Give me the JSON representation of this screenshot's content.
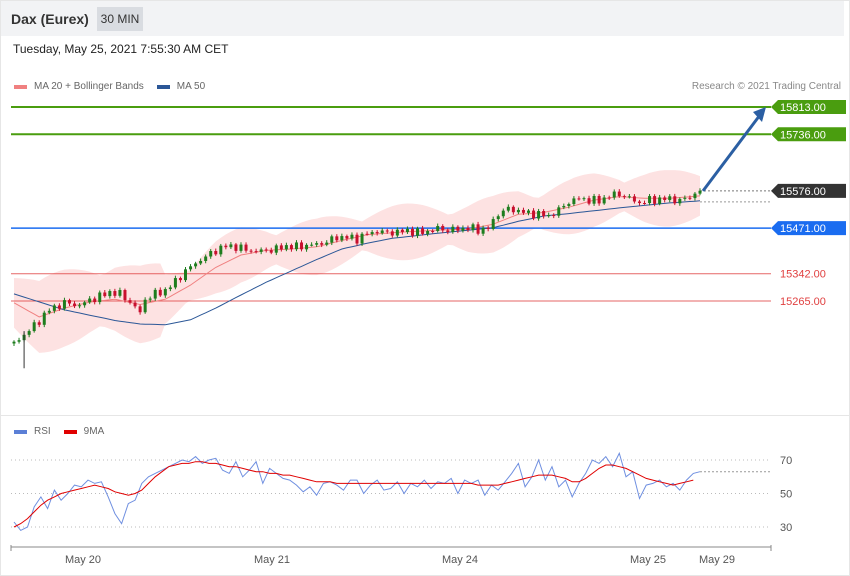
{
  "header": {
    "instrument": "Dax (Eurex)",
    "timeframe": "30 MIN"
  },
  "timestamp": "Tuesday, May 25, 2021 7:55:30 AM CET",
  "legend": {
    "items": [
      {
        "label": "MA 20 + Bollinger Bands",
        "color": "#f08080"
      },
      {
        "label": "MA 50",
        "color": "#2b5797"
      }
    ],
    "credit": "Research © 2021 Trading Central"
  },
  "rsi_legend": {
    "items": [
      {
        "label": "RSI",
        "color": "#5b7fd6"
      },
      {
        "label": "9MA",
        "color": "#e00000"
      }
    ]
  },
  "colors": {
    "resistance": "#4a9d0f",
    "pivot": "#1a6cf0",
    "support": "#e04040",
    "last_price": "#333333",
    "up_candle": "#1e7d1e",
    "down_candle": "#c8102e",
    "bollinger_fill": "#fde2e2",
    "arrow": "#2b5fa3"
  },
  "chart_data": [
    {
      "type": "candlestick",
      "x_ticks": [
        "May 20",
        "May 21",
        "May 24",
        "May 25",
        "May 29"
      ],
      "ylim": [
        15080,
        15860
      ],
      "levels": [
        {
          "label": "15813.00",
          "value": 15813,
          "role": "resistance"
        },
        {
          "label": "15736.00",
          "value": 15736,
          "role": "resistance"
        },
        {
          "label": "15576.00",
          "value": 15576,
          "role": "last_price"
        },
        {
          "label": "15471.00",
          "value": 15471,
          "role": "pivot"
        },
        {
          "label": "15342.00",
          "value": 15342,
          "role": "support"
        },
        {
          "label": "15265.00",
          "value": 15265,
          "role": "support"
        }
      ],
      "price_path": [
        [
          0,
          15145
        ],
        [
          8,
          15195
        ],
        [
          14,
          15240
        ],
        [
          20,
          15260
        ],
        [
          26,
          15252
        ],
        [
          30,
          15268
        ],
        [
          34,
          15278
        ],
        [
          38,
          15290
        ],
        [
          42,
          15285
        ],
        [
          46,
          15262
        ],
        [
          50,
          15232
        ],
        [
          52,
          15270
        ],
        [
          56,
          15285
        ],
        [
          60,
          15295
        ],
        [
          64,
          15320
        ],
        [
          68,
          15350
        ],
        [
          72,
          15372
        ],
        [
          76,
          15390
        ],
        [
          80,
          15408
        ],
        [
          84,
          15420
        ],
        [
          88,
          15418
        ],
        [
          92,
          15410
        ],
        [
          96,
          15405
        ],
        [
          100,
          15408
        ],
        [
          104,
          15412
        ],
        [
          108,
          15420
        ],
        [
          112,
          15418
        ],
        [
          116,
          15422
        ],
        [
          120,
          15425
        ],
        [
          124,
          15432
        ],
        [
          128,
          15445
        ],
        [
          132,
          15445
        ],
        [
          136,
          15440
        ],
        [
          140,
          15455
        ],
        [
          144,
          15462
        ],
        [
          148,
          15458
        ],
        [
          152,
          15460
        ],
        [
          156,
          15464
        ],
        [
          160,
          15458
        ],
        [
          164,
          15462
        ],
        [
          168,
          15470
        ],
        [
          172,
          15465
        ],
        [
          176,
          15468
        ],
        [
          180,
          15472
        ],
        [
          184,
          15466
        ],
        [
          188,
          15470
        ],
        [
          192,
          15512
        ],
        [
          196,
          15525
        ],
        [
          200,
          15520
        ],
        [
          204,
          15512
        ],
        [
          208,
          15510
        ],
        [
          212,
          15505
        ],
        [
          216,
          15522
        ],
        [
          220,
          15545
        ],
        [
          224,
          15555
        ],
        [
          228,
          15550
        ],
        [
          232,
          15548
        ],
        [
          236,
          15562
        ],
        [
          240,
          15568
        ],
        [
          244,
          15555
        ],
        [
          248,
          15542
        ],
        [
          252,
          15550
        ],
        [
          256,
          15552
        ],
        [
          260,
          15554
        ],
        [
          264,
          15548
        ],
        [
          268,
          15560
        ],
        [
          272,
          15576
        ]
      ],
      "ma50_path": [
        [
          0,
          15285
        ],
        [
          20,
          15240
        ],
        [
          40,
          15210
        ],
        [
          50,
          15200
        ],
        [
          60,
          15198
        ],
        [
          70,
          15212
        ],
        [
          80,
          15245
        ],
        [
          90,
          15282
        ],
        [
          100,
          15318
        ],
        [
          110,
          15350
        ],
        [
          120,
          15382
        ],
        [
          130,
          15412
        ],
        [
          140,
          15428
        ],
        [
          150,
          15442
        ],
        [
          160,
          15450
        ],
        [
          170,
          15458
        ],
        [
          180,
          15465
        ],
        [
          190,
          15472
        ],
        [
          200,
          15490
        ],
        [
          210,
          15505
        ],
        [
          220,
          15512
        ],
        [
          230,
          15520
        ],
        [
          240,
          15528
        ],
        [
          250,
          15535
        ],
        [
          260,
          15542
        ],
        [
          272,
          15548
        ]
      ],
      "ma20_path": [
        [
          0,
          15260
        ],
        [
          10,
          15220
        ],
        [
          20,
          15245
        ],
        [
          30,
          15262
        ],
        [
          40,
          15270
        ],
        [
          50,
          15255
        ],
        [
          60,
          15270
        ],
        [
          70,
          15310
        ],
        [
          80,
          15360
        ],
        [
          90,
          15395
        ],
        [
          100,
          15408
        ],
        [
          110,
          15412
        ],
        [
          120,
          15418
        ],
        [
          130,
          15436
        ],
        [
          140,
          15452
        ],
        [
          150,
          15458
        ],
        [
          160,
          15462
        ],
        [
          170,
          15466
        ],
        [
          180,
          15468
        ],
        [
          190,
          15482
        ],
        [
          200,
          15510
        ],
        [
          210,
          15515
        ],
        [
          220,
          15530
        ],
        [
          230,
          15550
        ],
        [
          240,
          15560
        ],
        [
          250,
          15555
        ],
        [
          260,
          15555
        ],
        [
          272,
          15562
        ]
      ],
      "forecast": {
        "from_value": 15576,
        "to_value": 15813
      }
    },
    {
      "type": "line",
      "ylim": [
        15,
        85
      ],
      "y_ticks": [
        "70",
        "50",
        "30"
      ],
      "series": [
        {
          "name": "RSI",
          "values": [
            33,
            28,
            30,
            42,
            48,
            41,
            52,
            46,
            50,
            55,
            54,
            58,
            56,
            57,
            48,
            38,
            32,
            44,
            46,
            56,
            60,
            62,
            64,
            66,
            68,
            70,
            69,
            72,
            68,
            70,
            71,
            64,
            62,
            69,
            60,
            64,
            69,
            56,
            65,
            62,
            59,
            58,
            55,
            51,
            54,
            49,
            56,
            57,
            55,
            52,
            58,
            58,
            50,
            55,
            58,
            52,
            53,
            57,
            50,
            56,
            54,
            58,
            53,
            57,
            56,
            59,
            50,
            58,
            56,
            58,
            49,
            55,
            52,
            57,
            62,
            68,
            54,
            60,
            70,
            58,
            66,
            54,
            58,
            48,
            56,
            62,
            70,
            68,
            72,
            66,
            74,
            60,
            63,
            47,
            55,
            56,
            58,
            54,
            56,
            52,
            58,
            62,
            63
          ]
        },
        {
          "name": "9MA",
          "values": [
            30,
            32,
            35,
            39,
            43,
            46,
            48,
            50,
            51,
            52,
            53,
            54,
            55,
            54,
            53,
            51,
            50,
            49,
            50,
            52,
            56,
            60,
            63,
            66,
            67,
            68,
            68,
            69,
            69,
            68,
            68,
            67,
            66,
            66,
            65,
            64,
            63,
            63,
            62,
            62,
            61,
            61,
            60,
            59,
            58,
            57,
            57,
            57,
            56,
            56,
            56,
            56,
            56,
            56,
            56,
            56,
            56,
            56,
            56,
            56,
            56,
            56,
            56,
            56,
            56,
            56,
            56,
            56,
            56,
            55,
            55,
            55,
            55,
            56,
            57,
            58,
            59,
            60,
            61,
            61,
            61,
            60,
            59,
            57,
            57,
            59,
            62,
            65,
            67,
            67,
            66,
            65,
            63,
            61,
            59,
            58,
            57,
            56,
            55,
            56,
            57,
            58
          ]
        }
      ]
    }
  ]
}
